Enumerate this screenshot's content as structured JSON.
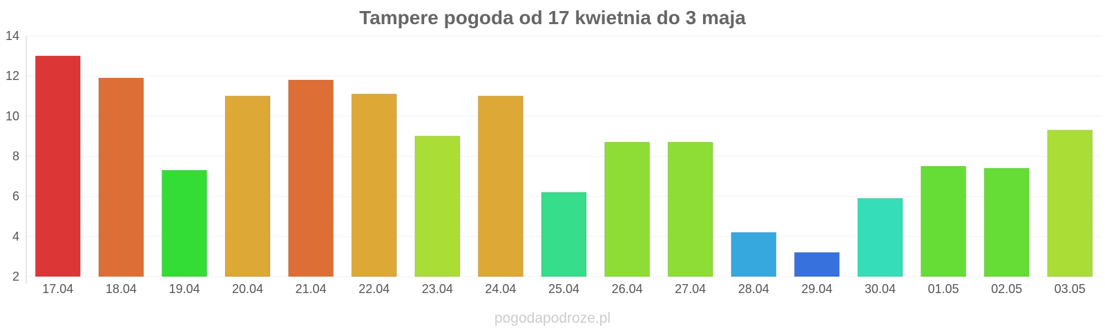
{
  "title": "Tampere pogoda od 17 kwietnia do 3 maja",
  "watermark": "pogodapodroze.pl",
  "chart_data": {
    "type": "bar",
    "title": "Tampere pogoda od 17 kwietnia do 3 maja",
    "xlabel": "",
    "ylabel": "",
    "categories": [
      "17.04",
      "18.04",
      "19.04",
      "20.04",
      "21.04",
      "22.04",
      "23.04",
      "24.04",
      "25.04",
      "26.04",
      "27.04",
      "28.04",
      "29.04",
      "30.04",
      "01.05",
      "02.05",
      "03.05"
    ],
    "values": [
      13.0,
      11.9,
      7.3,
      11.0,
      11.8,
      11.1,
      9.0,
      11.0,
      6.2,
      8.7,
      8.7,
      4.2,
      3.2,
      5.9,
      7.5,
      7.4,
      9.3
    ],
    "colors": [
      "#dd3636",
      "#dd6f36",
      "#33dd36",
      "#dda836",
      "#dd6f36",
      "#dda836",
      "#aadd36",
      "#dda836",
      "#36dd8a",
      "#8ddd36",
      "#8ddd36",
      "#36a8dd",
      "#3671dd",
      "#36ddb9",
      "#66dd36",
      "#66dd36",
      "#aadd36"
    ],
    "ylim": [
      2,
      14
    ],
    "yticks": [
      2,
      4,
      6,
      8,
      10,
      12,
      14
    ],
    "grid": true,
    "legend": "none"
  }
}
